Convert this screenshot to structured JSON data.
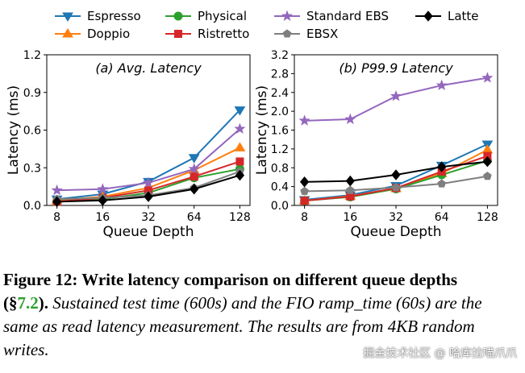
{
  "legend": [
    {
      "name": "Espresso",
      "color": "#1f77b4",
      "marker": "triangle-down"
    },
    {
      "name": "Doppio",
      "color": "#ff7f0e",
      "marker": "triangle-up"
    },
    {
      "name": "Physical",
      "color": "#2ca02c",
      "marker": "circle"
    },
    {
      "name": "Ristretto",
      "color": "#d62728",
      "marker": "square"
    },
    {
      "name": "Standard EBS",
      "color": "#9467bd",
      "marker": "star"
    },
    {
      "name": "EBSX",
      "color": "#7f7f7f",
      "marker": "pentagon"
    },
    {
      "name": "Latte",
      "color": "#000000",
      "marker": "diamond"
    }
  ],
  "chart_data": [
    {
      "type": "line",
      "title": "(a) Avg. Latency",
      "xlabel": "Queue Depth",
      "ylabel": "Latency (ms)",
      "x": [
        "8",
        "16",
        "32",
        "64",
        "128"
      ],
      "yticks": [
        "0.0",
        "0.3",
        "0.6",
        "0.9",
        "1.2"
      ],
      "ylim": [
        0,
        1.2
      ],
      "series": [
        {
          "name": "Espresso",
          "values": [
            0.05,
            0.09,
            0.19,
            0.38,
            0.76
          ]
        },
        {
          "name": "Doppio",
          "values": [
            0.04,
            0.07,
            0.14,
            0.28,
            0.46
          ]
        },
        {
          "name": "Physical",
          "values": [
            0.03,
            0.05,
            0.1,
            0.22,
            0.29
          ]
        },
        {
          "name": "Ristretto",
          "values": [
            0.03,
            0.06,
            0.12,
            0.23,
            0.35
          ]
        },
        {
          "name": "Standard EBS",
          "values": [
            0.12,
            0.13,
            0.18,
            0.29,
            0.61
          ]
        },
        {
          "name": "EBSX",
          "values": [
            0.05,
            0.06,
            0.08,
            0.14,
            0.27
          ]
        },
        {
          "name": "Latte",
          "values": [
            0.03,
            0.04,
            0.07,
            0.13,
            0.24
          ]
        }
      ]
    },
    {
      "type": "line",
      "title": "(b) P99.9 Latency",
      "xlabel": "Queue Depth",
      "ylabel": "Latency (ms)",
      "x": [
        "8",
        "16",
        "32",
        "64",
        "128"
      ],
      "yticks": [
        "0.0",
        "0.4",
        "0.8",
        "1.2",
        "1.6",
        "2.0",
        "2.4",
        "2.8",
        "3.2"
      ],
      "ylim": [
        0,
        3.2
      ],
      "series": [
        {
          "name": "Espresso",
          "values": [
            0.12,
            0.22,
            0.42,
            0.85,
            1.3
          ]
        },
        {
          "name": "Doppio",
          "values": [
            0.1,
            0.2,
            0.36,
            0.68,
            1.18
          ]
        },
        {
          "name": "Physical",
          "values": [
            0.1,
            0.18,
            0.35,
            0.65,
            0.95
          ]
        },
        {
          "name": "Ristretto",
          "values": [
            0.1,
            0.19,
            0.37,
            0.72,
            1.05
          ]
        },
        {
          "name": "Standard EBS",
          "values": [
            1.8,
            1.83,
            2.32,
            2.55,
            2.71
          ]
        },
        {
          "name": "EBSX",
          "values": [
            0.3,
            0.32,
            0.38,
            0.46,
            0.62
          ]
        },
        {
          "name": "Latte",
          "values": [
            0.5,
            0.52,
            0.65,
            0.82,
            0.93
          ]
        }
      ]
    }
  ],
  "caption": {
    "label": "Figure 12: Write latency comparison on different queue depths",
    "ref_open": "(§",
    "ref_num": "7.2",
    "ref_close": ").",
    "body": " Sustained test time (600s) and the FIO ramp_time (60s) are the same as read latency measurement. The results are from 4KB random writes."
  },
  "watermark": "掘金技术社区 @ 哈库拉喵爪爪"
}
